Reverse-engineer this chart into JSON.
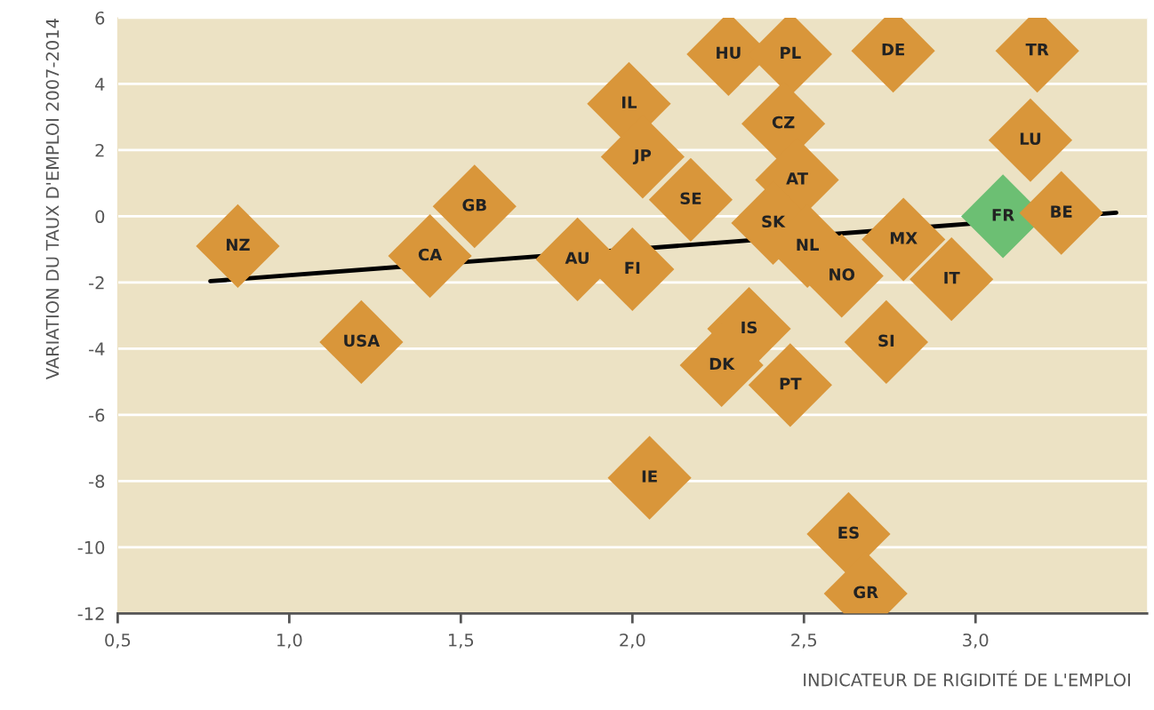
{
  "chart_data": {
    "type": "scatter",
    "xlabel": "INDICATEUR DE RIGIDITÉ DE L'EMPLOI",
    "ylabel": "VARIATION DU TAUX D'EMPLOI 2007-2014",
    "xlim": [
      0.5,
      3.5
    ],
    "ylim": [
      -12,
      6
    ],
    "xticks": [
      {
        "value": 0.5,
        "label": "0,5"
      },
      {
        "value": 1.0,
        "label": "1,0"
      },
      {
        "value": 1.5,
        "label": "1,5"
      },
      {
        "value": 2.0,
        "label": "2,0"
      },
      {
        "value": 2.5,
        "label": "2,5"
      },
      {
        "value": 3.0,
        "label": "3,0"
      }
    ],
    "yticks": [
      -12,
      -10,
      -8,
      -6,
      -4,
      -2,
      0,
      2,
      4,
      6
    ],
    "grid": "y",
    "marker": "diamond",
    "series": [
      {
        "x": [
          0.85,
          1.21,
          1.41,
          1.54,
          1.84,
          2.0,
          1.99,
          2.03,
          2.05,
          2.17,
          2.28,
          2.46,
          2.44,
          2.48,
          2.41,
          2.51,
          2.61,
          2.34,
          2.26,
          2.46,
          2.74,
          2.79,
          2.93,
          2.76,
          3.18,
          3.16,
          3.08,
          3.25,
          2.63,
          2.68
        ],
        "values": [
          -0.9,
          -3.8,
          -1.2,
          0.3,
          -1.3,
          -1.6,
          3.4,
          1.8,
          -7.9,
          0.5,
          4.9,
          4.9,
          2.8,
          1.1,
          -0.2,
          -0.9,
          -1.8,
          -3.4,
          -4.5,
          -5.1,
          -3.8,
          -0.7,
          -1.9,
          5.0,
          5.0,
          2.3,
          0.0,
          0.1,
          -9.6,
          -11.4
        ],
        "colors": [
          "#d9963a",
          "#d9963a",
          "#d9963a",
          "#d9963a",
          "#d9963a",
          "#d9963a",
          "#d9963a",
          "#d9963a",
          "#d9963a",
          "#d9963a",
          "#d9963a",
          "#d9963a",
          "#d9963a",
          "#d9963a",
          "#d9963a",
          "#d9963a",
          "#d9963a",
          "#d9963a",
          "#d9963a",
          "#d9963a",
          "#d9963a",
          "#d9963a",
          "#d9963a",
          "#d9963a",
          "#d9963a",
          "#d9963a",
          "#6cbf73",
          "#d9963a",
          "#d9963a",
          "#d9963a"
        ]
      },
      {
        "type": "line",
        "x": [
          0.77,
          3.41
        ],
        "values": [
          -1.96,
          0.11
        ],
        "color": "#000000",
        "marker": "none",
        "line_style": "solid"
      }
    ],
    "annotations": [
      {
        "text": "NZ",
        "x": 0.85,
        "y": -0.9
      },
      {
        "text": "USA",
        "x": 1.21,
        "y": -3.8
      },
      {
        "text": "CA",
        "x": 1.41,
        "y": -1.2
      },
      {
        "text": "GB",
        "x": 1.54,
        "y": 0.3
      },
      {
        "text": "AU",
        "x": 1.84,
        "y": -1.3
      },
      {
        "text": "FI",
        "x": 2.0,
        "y": -1.6
      },
      {
        "text": "IL",
        "x": 1.99,
        "y": 3.4
      },
      {
        "text": "JP",
        "x": 2.03,
        "y": 1.8
      },
      {
        "text": "IE",
        "x": 2.05,
        "y": -7.9
      },
      {
        "text": "SE",
        "x": 2.17,
        "y": 0.5
      },
      {
        "text": "HU",
        "x": 2.28,
        "y": 4.9
      },
      {
        "text": "PL",
        "x": 2.46,
        "y": 4.9
      },
      {
        "text": "CZ",
        "x": 2.44,
        "y": 2.8
      },
      {
        "text": "AT",
        "x": 2.48,
        "y": 1.1
      },
      {
        "text": "SK",
        "x": 2.41,
        "y": -0.2
      },
      {
        "text": "NL",
        "x": 2.51,
        "y": -0.9
      },
      {
        "text": "NO",
        "x": 2.61,
        "y": -1.8
      },
      {
        "text": "IS",
        "x": 2.34,
        "y": -3.4
      },
      {
        "text": "DK",
        "x": 2.26,
        "y": -4.5
      },
      {
        "text": "PT",
        "x": 2.46,
        "y": -5.1
      },
      {
        "text": "SI",
        "x": 2.74,
        "y": -3.8
      },
      {
        "text": "MX",
        "x": 2.79,
        "y": -0.7
      },
      {
        "text": "IT",
        "x": 2.93,
        "y": -1.9
      },
      {
        "text": "DE",
        "x": 2.76,
        "y": 5.0
      },
      {
        "text": "TR",
        "x": 3.18,
        "y": 5.0
      },
      {
        "text": "LU",
        "x": 3.16,
        "y": 2.3
      },
      {
        "text": "FR",
        "x": 3.08,
        "y": 0.0
      },
      {
        "text": "BE",
        "x": 3.25,
        "y": 0.1
      },
      {
        "text": "ES",
        "x": 2.63,
        "y": -9.6
      },
      {
        "text": "GR",
        "x": 2.68,
        "y": -11.4
      }
    ]
  }
}
